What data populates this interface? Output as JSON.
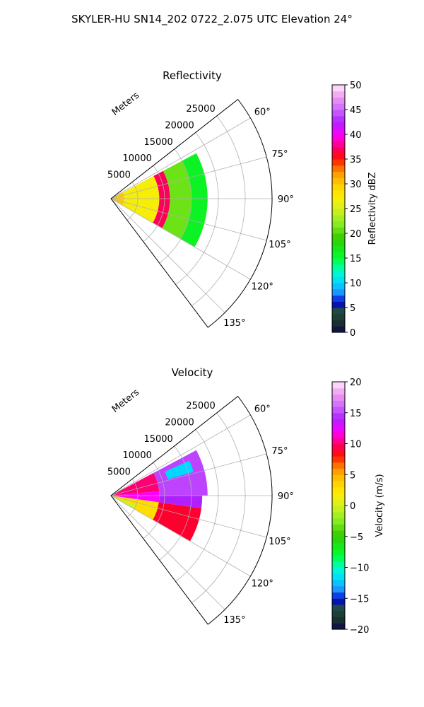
{
  "suptitle": "SKYLER-HU  SN14_202  0722_2.075 UTC Elevation 24°",
  "chart_data": [
    {
      "type": "polar-sector",
      "title": "Reflectivity",
      "radial_label": "Meters",
      "radial_ticks": [
        "5000",
        "10000",
        "15000",
        "20000",
        "25000"
      ],
      "radial_tick_values": [
        5000,
        10000,
        15000,
        20000,
        25000
      ],
      "rmax": 30000,
      "angle_ticks": [
        "60°",
        "75°",
        "90°",
        "105°",
        "120°",
        "135°"
      ],
      "angle_tick_values": [
        60,
        75,
        90,
        105,
        120,
        135
      ],
      "sector_range_deg": [
        52,
        143
      ],
      "data_sector_deg": [
        62,
        120
      ],
      "grid": true,
      "colorbar": {
        "label": "Reflectivity dBZ",
        "min": 0,
        "max": 50,
        "ticks": [
          0,
          5,
          10,
          15,
          20,
          25,
          30,
          35,
          40,
          45,
          50
        ],
        "tick_labels": [
          "0",
          "5",
          "10",
          "15",
          "20",
          "25",
          "30",
          "35",
          "40",
          "45",
          "50"
        ]
      },
      "field": {
        "max_range_m": 18000,
        "regions": [
          {
            "r_from_m": 0,
            "r_to_m": 2500,
            "value_dbz": 30
          },
          {
            "r_from_m": 2500,
            "r_to_m": 9000,
            "value_dbz": 27
          },
          {
            "r_from_m": 9000,
            "r_to_m": 11000,
            "value_dbz": 37
          },
          {
            "r_from_m": 11000,
            "r_to_m": 15000,
            "value_dbz": 21
          },
          {
            "r_from_m": 15000,
            "r_to_m": 18000,
            "value_dbz": 16
          }
        ]
      }
    },
    {
      "type": "polar-sector",
      "title": "Velocity",
      "radial_label": "Meters",
      "radial_ticks": [
        "5000",
        "10000",
        "15000",
        "20000",
        "25000"
      ],
      "radial_tick_values": [
        5000,
        10000,
        15000,
        20000,
        25000
      ],
      "rmax": 30000,
      "angle_ticks": [
        "60°",
        "75°",
        "90°",
        "105°",
        "120°",
        "135°"
      ],
      "angle_tick_values": [
        60,
        75,
        90,
        105,
        120,
        135
      ],
      "sector_range_deg": [
        52,
        143
      ],
      "data_sector_deg": [
        62,
        120
      ],
      "grid": true,
      "colorbar": {
        "label": "Velocity (m/s)",
        "min": -20,
        "max": 20,
        "ticks": [
          -20,
          -15,
          -10,
          -5,
          0,
          5,
          10,
          15,
          20
        ],
        "tick_labels": [
          "−20",
          "−15",
          "−10",
          "−5",
          "0",
          "5",
          "10",
          "15",
          "20"
        ]
      },
      "field": {
        "max_range_m": 18000,
        "regions": [
          {
            "angle_from_deg": 62,
            "angle_to_deg": 85,
            "r_from_m": 0,
            "r_to_m": 9000,
            "value_ms": 10
          },
          {
            "angle_from_deg": 62,
            "angle_to_deg": 90,
            "r_from_m": 9000,
            "r_to_m": 18000,
            "value_ms": 15
          },
          {
            "angle_from_deg": 66,
            "angle_to_deg": 74,
            "r_from_m": 11000,
            "r_to_m": 16000,
            "value_ms": -12
          },
          {
            "angle_from_deg": 85,
            "angle_to_deg": 98,
            "r_from_m": 0,
            "r_to_m": 9000,
            "value_ms": 12
          },
          {
            "angle_from_deg": 90,
            "angle_to_deg": 98,
            "r_from_m": 9000,
            "r_to_m": 17000,
            "value_ms": 14
          },
          {
            "angle_from_deg": 98,
            "angle_to_deg": 120,
            "r_from_m": 0,
            "r_to_m": 9000,
            "value_ms": 3
          },
          {
            "angle_from_deg": 98,
            "angle_to_deg": 120,
            "r_from_m": 9000,
            "r_to_m": 17000,
            "value_ms": 9
          },
          {
            "angle_from_deg": 110,
            "angle_to_deg": 120,
            "r_from_m": 0,
            "r_to_m": 5000,
            "value_ms": 0
          }
        ]
      }
    }
  ]
}
